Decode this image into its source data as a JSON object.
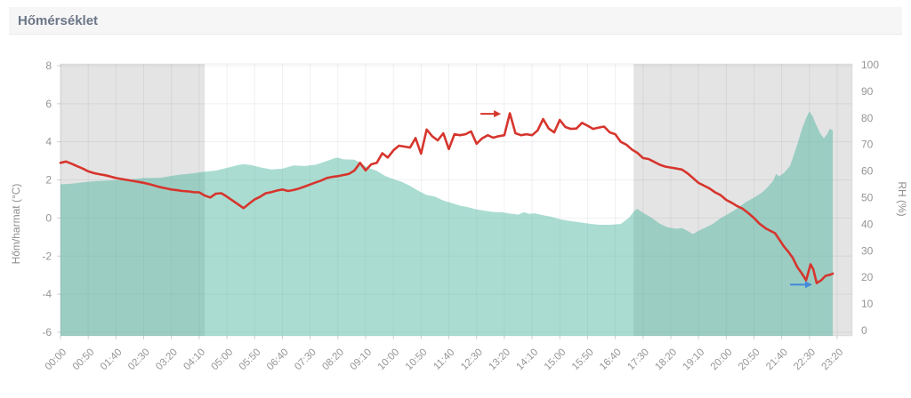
{
  "header": {
    "title": "Hőmérséklet"
  },
  "colors": {
    "temperature_line": "#d6352d",
    "rh_area_base": "#45b29d",
    "rh_area_fill": "rgba(69,178,157,0.46)",
    "night_band": "#e4e4e4",
    "grid": "rgba(0,0,0,0.06)",
    "plot_border": "rgba(0,0,0,0.08)",
    "tick_text": "#959595",
    "axis_title_text": "#8e8e8e",
    "red_arrow": "#d6352d",
    "blue_arrow": "#4488d8"
  },
  "chart_data": {
    "type": "line",
    "title": "Hőmérséklet",
    "x_unit": "time (HH:MM), 50-minute ticks",
    "x_tick_minutes_step": 50,
    "x_tick_labels": [
      "00:00",
      "00:50",
      "01:40",
      "02:30",
      "03:20",
      "04:10",
      "05:00",
      "05:50",
      "06:40",
      "07:30",
      "08:20",
      "09:10",
      "10:00",
      "10:50",
      "11:40",
      "12:30",
      "13:20",
      "14:10",
      "15:00",
      "15:50",
      "16:40",
      "17:30",
      "18:20",
      "19:10",
      "20:00",
      "20:50",
      "21:40",
      "22:30",
      "23:20"
    ],
    "y_left": {
      "label": "Hőm/harmat (°C)",
      "min": -6,
      "max": 8,
      "ticks": [
        8,
        6,
        4,
        2,
        0,
        -2,
        -4,
        -6
      ]
    },
    "y_right": {
      "label": "RH (%)",
      "min": 0,
      "max": 100,
      "ticks": [
        100,
        90,
        80,
        70,
        60,
        50,
        40,
        30,
        20,
        10,
        0
      ]
    },
    "grid": true,
    "legend": "none",
    "night_bands_minutes": [
      [
        0,
        260
      ],
      [
        1033,
        1427
      ]
    ],
    "series": [
      {
        "name": "Hőmérséklet (°C)",
        "type": "line",
        "axis": "left",
        "color": "#d6352d",
        "points": [
          [
            0,
            2.9
          ],
          [
            10,
            2.97
          ],
          [
            20,
            2.85
          ],
          [
            30,
            2.72
          ],
          [
            40,
            2.6
          ],
          [
            50,
            2.45
          ],
          [
            60,
            2.36
          ],
          [
            70,
            2.3
          ],
          [
            80,
            2.25
          ],
          [
            90,
            2.18
          ],
          [
            100,
            2.1
          ],
          [
            110,
            2.05
          ],
          [
            120,
            2.0
          ],
          [
            130,
            1.95
          ],
          [
            140,
            1.9
          ],
          [
            150,
            1.85
          ],
          [
            160,
            1.78
          ],
          [
            170,
            1.7
          ],
          [
            180,
            1.62
          ],
          [
            190,
            1.56
          ],
          [
            200,
            1.5
          ],
          [
            210,
            1.46
          ],
          [
            220,
            1.42
          ],
          [
            230,
            1.4
          ],
          [
            240,
            1.36
          ],
          [
            250,
            1.35
          ],
          [
            260,
            1.18
          ],
          [
            270,
            1.08
          ],
          [
            280,
            1.28
          ],
          [
            290,
            1.3
          ],
          [
            300,
            1.12
          ],
          [
            310,
            0.92
          ],
          [
            320,
            0.72
          ],
          [
            330,
            0.52
          ],
          [
            340,
            0.75
          ],
          [
            350,
            0.98
          ],
          [
            360,
            1.12
          ],
          [
            370,
            1.3
          ],
          [
            380,
            1.36
          ],
          [
            390,
            1.44
          ],
          [
            400,
            1.5
          ],
          [
            410,
            1.42
          ],
          [
            420,
            1.47
          ],
          [
            430,
            1.55
          ],
          [
            440,
            1.65
          ],
          [
            450,
            1.76
          ],
          [
            460,
            1.87
          ],
          [
            470,
            1.97
          ],
          [
            480,
            2.1
          ],
          [
            490,
            2.16
          ],
          [
            500,
            2.2
          ],
          [
            510,
            2.26
          ],
          [
            520,
            2.32
          ],
          [
            530,
            2.5
          ],
          [
            540,
            2.9
          ],
          [
            550,
            2.5
          ],
          [
            560,
            2.82
          ],
          [
            570,
            2.9
          ],
          [
            580,
            3.4
          ],
          [
            590,
            3.18
          ],
          [
            600,
            3.55
          ],
          [
            610,
            3.8
          ],
          [
            620,
            3.75
          ],
          [
            630,
            3.7
          ],
          [
            640,
            4.2
          ],
          [
            650,
            3.38
          ],
          [
            660,
            4.65
          ],
          [
            670,
            4.3
          ],
          [
            680,
            4.08
          ],
          [
            690,
            4.45
          ],
          [
            700,
            3.62
          ],
          [
            710,
            4.4
          ],
          [
            720,
            4.35
          ],
          [
            730,
            4.4
          ],
          [
            740,
            4.55
          ],
          [
            750,
            3.9
          ],
          [
            760,
            4.18
          ],
          [
            770,
            4.35
          ],
          [
            780,
            4.22
          ],
          [
            790,
            4.3
          ],
          [
            800,
            4.35
          ],
          [
            810,
            5.5
          ],
          [
            820,
            4.45
          ],
          [
            830,
            4.35
          ],
          [
            840,
            4.4
          ],
          [
            850,
            4.35
          ],
          [
            860,
            4.6
          ],
          [
            870,
            5.2
          ],
          [
            880,
            4.7
          ],
          [
            890,
            4.5
          ],
          [
            900,
            5.15
          ],
          [
            910,
            4.78
          ],
          [
            920,
            4.68
          ],
          [
            930,
            4.7
          ],
          [
            940,
            5.0
          ],
          [
            950,
            4.85
          ],
          [
            960,
            4.68
          ],
          [
            970,
            4.75
          ],
          [
            980,
            4.8
          ],
          [
            990,
            4.5
          ],
          [
            1000,
            4.4
          ],
          [
            1010,
            4.0
          ],
          [
            1020,
            3.85
          ],
          [
            1030,
            3.6
          ],
          [
            1040,
            3.42
          ],
          [
            1050,
            3.15
          ],
          [
            1060,
            3.1
          ],
          [
            1070,
            2.95
          ],
          [
            1080,
            2.8
          ],
          [
            1090,
            2.7
          ],
          [
            1100,
            2.65
          ],
          [
            1110,
            2.6
          ],
          [
            1120,
            2.55
          ],
          [
            1130,
            2.35
          ],
          [
            1140,
            2.1
          ],
          [
            1150,
            1.85
          ],
          [
            1160,
            1.7
          ],
          [
            1170,
            1.55
          ],
          [
            1180,
            1.35
          ],
          [
            1190,
            1.2
          ],
          [
            1200,
            0.95
          ],
          [
            1210,
            0.8
          ],
          [
            1220,
            0.62
          ],
          [
            1230,
            0.48
          ],
          [
            1240,
            0.25
          ],
          [
            1250,
            0.0
          ],
          [
            1260,
            -0.3
          ],
          [
            1272,
            -0.56
          ],
          [
            1288,
            -0.8
          ],
          [
            1304,
            -1.5
          ],
          [
            1312,
            -1.78
          ],
          [
            1320,
            -2.1
          ],
          [
            1328,
            -2.57
          ],
          [
            1336,
            -2.9
          ],
          [
            1344,
            -3.27
          ],
          [
            1352,
            -2.43
          ],
          [
            1357,
            -2.7
          ],
          [
            1363,
            -3.42
          ],
          [
            1371,
            -3.27
          ],
          [
            1379,
            -3.04
          ],
          [
            1387,
            -2.98
          ],
          [
            1392,
            -2.92
          ]
        ]
      },
      {
        "name": "RH (%)",
        "type": "area",
        "axis": "right",
        "color": "rgba(69,178,157,0.46)",
        "points": [
          [
            0,
            55
          ],
          [
            20,
            55.3
          ],
          [
            40,
            55.8
          ],
          [
            60,
            56.2
          ],
          [
            90,
            56.5
          ],
          [
            120,
            56.8
          ],
          [
            150,
            57.4
          ],
          [
            180,
            57.5
          ],
          [
            200,
            58.2
          ],
          [
            220,
            58.8
          ],
          [
            240,
            59.2
          ],
          [
            260,
            59.8
          ],
          [
            280,
            60.2
          ],
          [
            300,
            61.2
          ],
          [
            320,
            62.3
          ],
          [
            330,
            62.6
          ],
          [
            345,
            62.2
          ],
          [
            360,
            61.4
          ],
          [
            380,
            60.6
          ],
          [
            400,
            60.9
          ],
          [
            420,
            62.1
          ],
          [
            440,
            61.9
          ],
          [
            460,
            62.4
          ],
          [
            480,
            63.8
          ],
          [
            495,
            64.9
          ],
          [
            500,
            65.1
          ],
          [
            510,
            64.4
          ],
          [
            530,
            64.3
          ],
          [
            540,
            63.1
          ],
          [
            555,
            61.2
          ],
          [
            570,
            60.1
          ],
          [
            585,
            58.2
          ],
          [
            600,
            57
          ],
          [
            615,
            56
          ],
          [
            630,
            54.4
          ],
          [
            645,
            52.6
          ],
          [
            660,
            51
          ],
          [
            675,
            50.4
          ],
          [
            690,
            48.9
          ],
          [
            705,
            48
          ],
          [
            720,
            47
          ],
          [
            735,
            46.4
          ],
          [
            750,
            45.6
          ],
          [
            765,
            45.1
          ],
          [
            780,
            44.6
          ],
          [
            795,
            44.5
          ],
          [
            810,
            44
          ],
          [
            825,
            43.6
          ],
          [
            835,
            44.5
          ],
          [
            845,
            43.9
          ],
          [
            855,
            44.1
          ],
          [
            870,
            43.4
          ],
          [
            885,
            42.8
          ],
          [
            900,
            41.9
          ],
          [
            915,
            41.3
          ],
          [
            930,
            40.9
          ],
          [
            950,
            40.3
          ],
          [
            970,
            39.8
          ],
          [
            990,
            39.8
          ],
          [
            1010,
            40.1
          ],
          [
            1025,
            42.5
          ],
          [
            1035,
            45.2
          ],
          [
            1040,
            45.8
          ],
          [
            1050,
            44.3
          ],
          [
            1065,
            42.5
          ],
          [
            1080,
            40.2
          ],
          [
            1095,
            38.8
          ],
          [
            1110,
            38.3
          ],
          [
            1120,
            38.6
          ],
          [
            1130,
            37.5
          ],
          [
            1140,
            36.3
          ],
          [
            1150,
            37.5
          ],
          [
            1160,
            38.5
          ],
          [
            1175,
            40
          ],
          [
            1190,
            42.3
          ],
          [
            1205,
            44
          ],
          [
            1220,
            46
          ],
          [
            1235,
            48.3
          ],
          [
            1250,
            50
          ],
          [
            1265,
            52
          ],
          [
            1275,
            54
          ],
          [
            1285,
            56.5
          ],
          [
            1290,
            59
          ],
          [
            1295,
            58
          ],
          [
            1305,
            59.5
          ],
          [
            1315,
            62
          ],
          [
            1320,
            65
          ],
          [
            1328,
            70
          ],
          [
            1336,
            75.5
          ],
          [
            1344,
            80
          ],
          [
            1350,
            82.5
          ],
          [
            1356,
            80.5
          ],
          [
            1362,
            77.5
          ],
          [
            1370,
            74
          ],
          [
            1376,
            72.3
          ],
          [
            1382,
            74
          ],
          [
            1387,
            76
          ],
          [
            1392,
            75.3
          ]
        ]
      }
    ],
    "annotations": [
      {
        "id": "red-arrow",
        "type": "arrow-right",
        "axis": "left",
        "color": "#d6352d",
        "from_minute": 757,
        "to_minute": 794,
        "value": 5.47
      },
      {
        "id": "blue-arrow",
        "type": "arrow-right",
        "axis": "left",
        "color": "#4488d8",
        "from_minute": 1315,
        "to_minute": 1355,
        "value": -3.5
      }
    ]
  }
}
